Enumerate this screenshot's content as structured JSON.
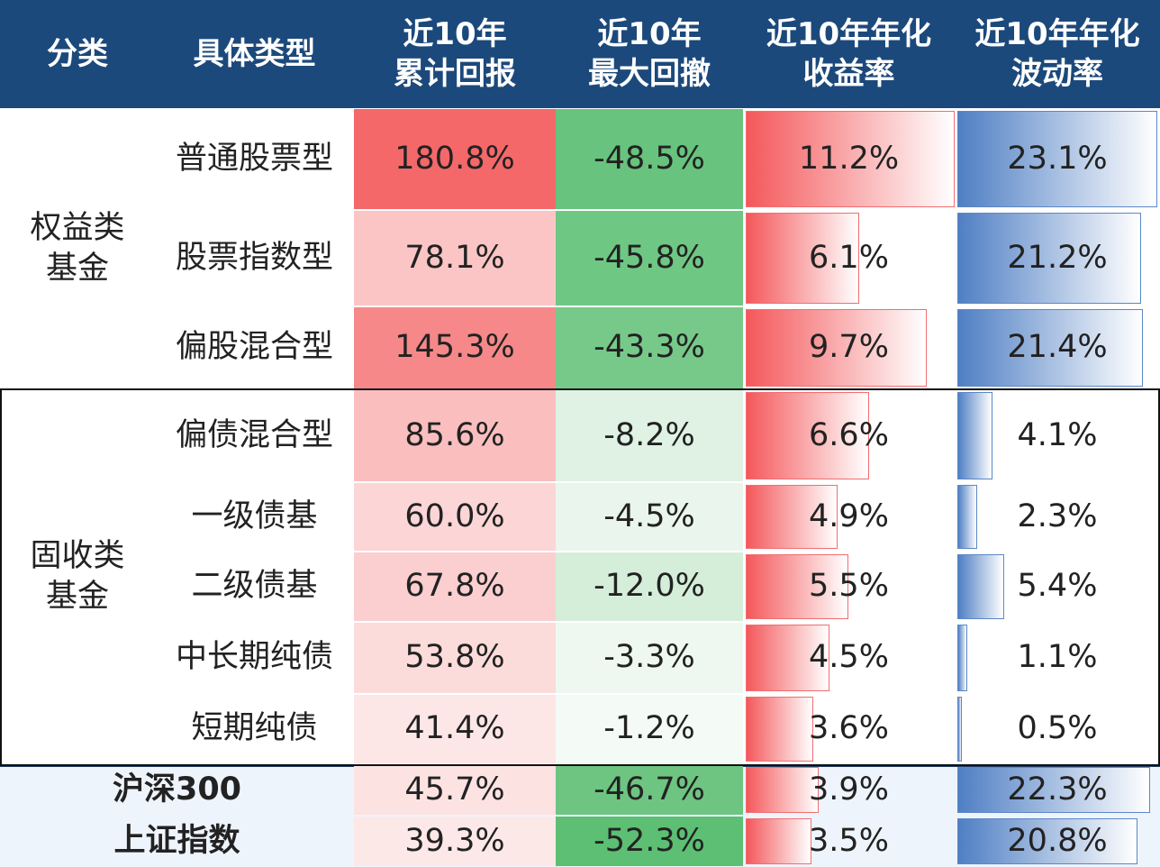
{
  "header": [
    [
      "分类"
    ],
    [
      "具体类型"
    ],
    [
      "近10年",
      "累计回报"
    ],
    [
      "近10年",
      "最大回撤"
    ],
    [
      "近10年年化",
      "收益率"
    ],
    [
      "近10年年化",
      "波动率"
    ]
  ],
  "groups": [
    {
      "name": [
        "权益类",
        "基金"
      ],
      "rows": [
        {
          "type": "普通股票型",
          "values": [
            "180.8%",
            "-48.5%",
            "11.2%",
            "23.1%"
          ]
        },
        {
          "type": "股票指数型",
          "values": [
            "78.1%",
            "-45.8%",
            "6.1%",
            "21.2%"
          ]
        },
        {
          "type": "偏股混合型",
          "values": [
            "145.3%",
            "-43.3%",
            "9.7%",
            "21.4%"
          ]
        }
      ]
    },
    {
      "name": [
        "固收类",
        "基金"
      ],
      "rows": [
        {
          "type": "偏债混合型",
          "values": [
            "85.6%",
            "-8.2%",
            "6.6%",
            "4.1%"
          ]
        },
        {
          "type": "一级债基",
          "values": [
            "60.0%",
            "-4.5%",
            "4.9%",
            "2.3%"
          ]
        },
        {
          "type": "二级债基",
          "values": [
            "67.8%",
            "-12.0%",
            "5.5%",
            "5.4%"
          ]
        },
        {
          "type": "中长期纯债",
          "values": [
            "53.8%",
            "-3.3%",
            "4.5%",
            "1.1%"
          ]
        },
        {
          "type": "短期纯债",
          "values": [
            "41.4%",
            "-1.2%",
            "3.6%",
            "0.5%"
          ]
        }
      ]
    }
  ],
  "benchmarks": [
    {
      "name": "沪深300",
      "values": [
        "45.7%",
        "-46.7%",
        "3.9%",
        "22.3%"
      ]
    },
    {
      "name": "上证指数",
      "values": [
        "39.3%",
        "-52.3%",
        "3.5%",
        "20.8%"
      ]
    }
  ]
}
